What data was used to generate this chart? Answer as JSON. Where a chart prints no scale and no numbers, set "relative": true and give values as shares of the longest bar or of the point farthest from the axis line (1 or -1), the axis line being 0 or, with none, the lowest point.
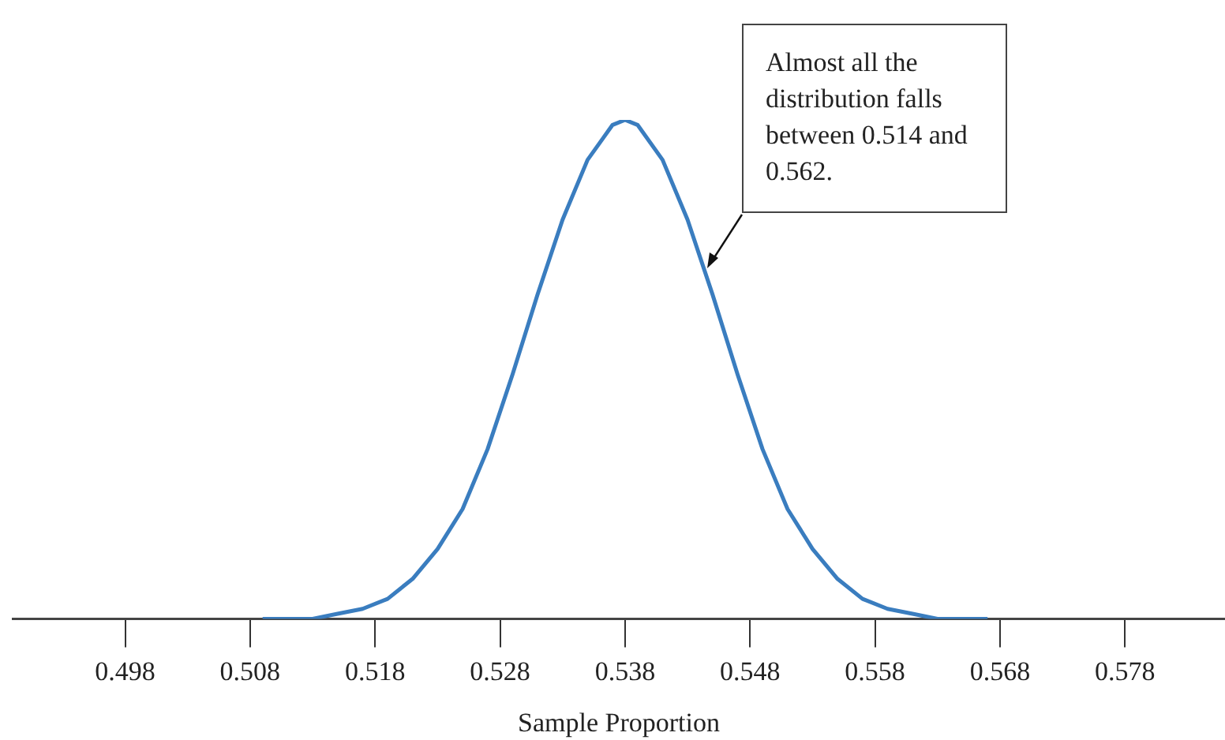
{
  "chart_data": {
    "type": "line",
    "relative": true,
    "xlabel": "Sample Proportion",
    "x": [
      0.509,
      0.511,
      0.513,
      0.515,
      0.517,
      0.519,
      0.521,
      0.523,
      0.525,
      0.527,
      0.529,
      0.531,
      0.533,
      0.535,
      0.537,
      0.538,
      0.539,
      0.541,
      0.543,
      0.545,
      0.547,
      0.549,
      0.551,
      0.553,
      0.555,
      0.557,
      0.559,
      0.561,
      0.563,
      0.565,
      0.567
    ],
    "series": [
      {
        "color": "#3a7dbf",
        "values": [
          0,
          0,
          0,
          0.01,
          0.02,
          0.04,
          0.08,
          0.14,
          0.22,
          0.34,
          0.49,
          0.65,
          0.8,
          0.92,
          0.99,
          1,
          0.99,
          0.92,
          0.8,
          0.65,
          0.49,
          0.34,
          0.22,
          0.14,
          0.08,
          0.04,
          0.02,
          0.01,
          0,
          0,
          0
        ]
      }
    ],
    "xlim": [
      0.489,
      0.586
    ],
    "xticks": [
      0.498,
      0.508,
      0.518,
      0.528,
      0.538,
      0.548,
      0.558,
      0.568,
      0.578
    ],
    "annotations": [
      "Almost all the distribution falls between 0.514 and 0.562."
    ],
    "grid": false,
    "legend": false
  }
}
